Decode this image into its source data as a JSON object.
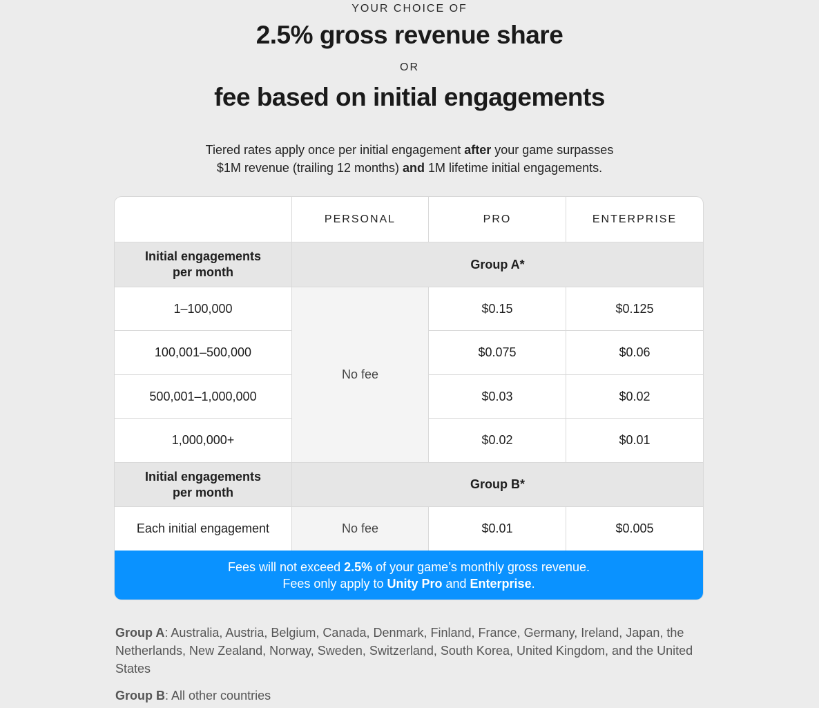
{
  "header": {
    "eyebrow1": "YOUR CHOICE OF",
    "headline1": "2.5% gross revenue share",
    "eyebrow2": "OR",
    "headline2": "fee based on initial engagements"
  },
  "intro": {
    "line1_a": "Tiered rates apply once per initial engagement ",
    "line1_b": "after",
    "line1_c": " your game surpasses",
    "line2_a": "$1M revenue (trailing 12 months) ",
    "line2_b": "and",
    "line2_c": " 1M lifetime initial engagements."
  },
  "table": {
    "columns": [
      "",
      "PERSONAL",
      "PRO",
      "ENTERPRISE"
    ],
    "group_a": {
      "label_line1": "Initial engagements",
      "label_line2": "per month",
      "title": "Group A*",
      "personal": "No fee",
      "rows": [
        {
          "range": "1–100,000",
          "pro": "$0.15",
          "enterprise": "$0.125"
        },
        {
          "range": "100,001–500,000",
          "pro": "$0.075",
          "enterprise": "$0.06"
        },
        {
          "range": "500,001–1,000,000",
          "pro": "$0.03",
          "enterprise": "$0.02"
        },
        {
          "range": "1,000,000+",
          "pro": "$0.02",
          "enterprise": "$0.01"
        }
      ]
    },
    "group_b": {
      "label_line1": "Initial engagements",
      "label_line2": "per month",
      "title": "Group B*",
      "row": {
        "range": "Each initial engagement",
        "personal": "No fee",
        "pro": "$0.01",
        "enterprise": "$0.005"
      }
    }
  },
  "banner": {
    "line1_a": "Fees will not exceed ",
    "line1_b": "2.5%",
    "line1_c": " of your game’s monthly gross revenue.",
    "line2_a": "Fees only apply to ",
    "line2_b": "Unity Pro",
    "line2_c": " and ",
    "line2_d": "Enterprise",
    "line2_e": ".",
    "color": "#0a92ff"
  },
  "footnotes": {
    "group_a_label": "Group A",
    "group_a_text": ": Australia, Austria, Belgium, Canada, Denmark, Finland, France, Germany, Ireland, Japan, the Netherlands, New Zealand, Norway, Sweden, Switzerland, South Korea, United Kingdom, and the United States",
    "group_b_label": "Group B",
    "group_b_text": ": All other countries"
  }
}
